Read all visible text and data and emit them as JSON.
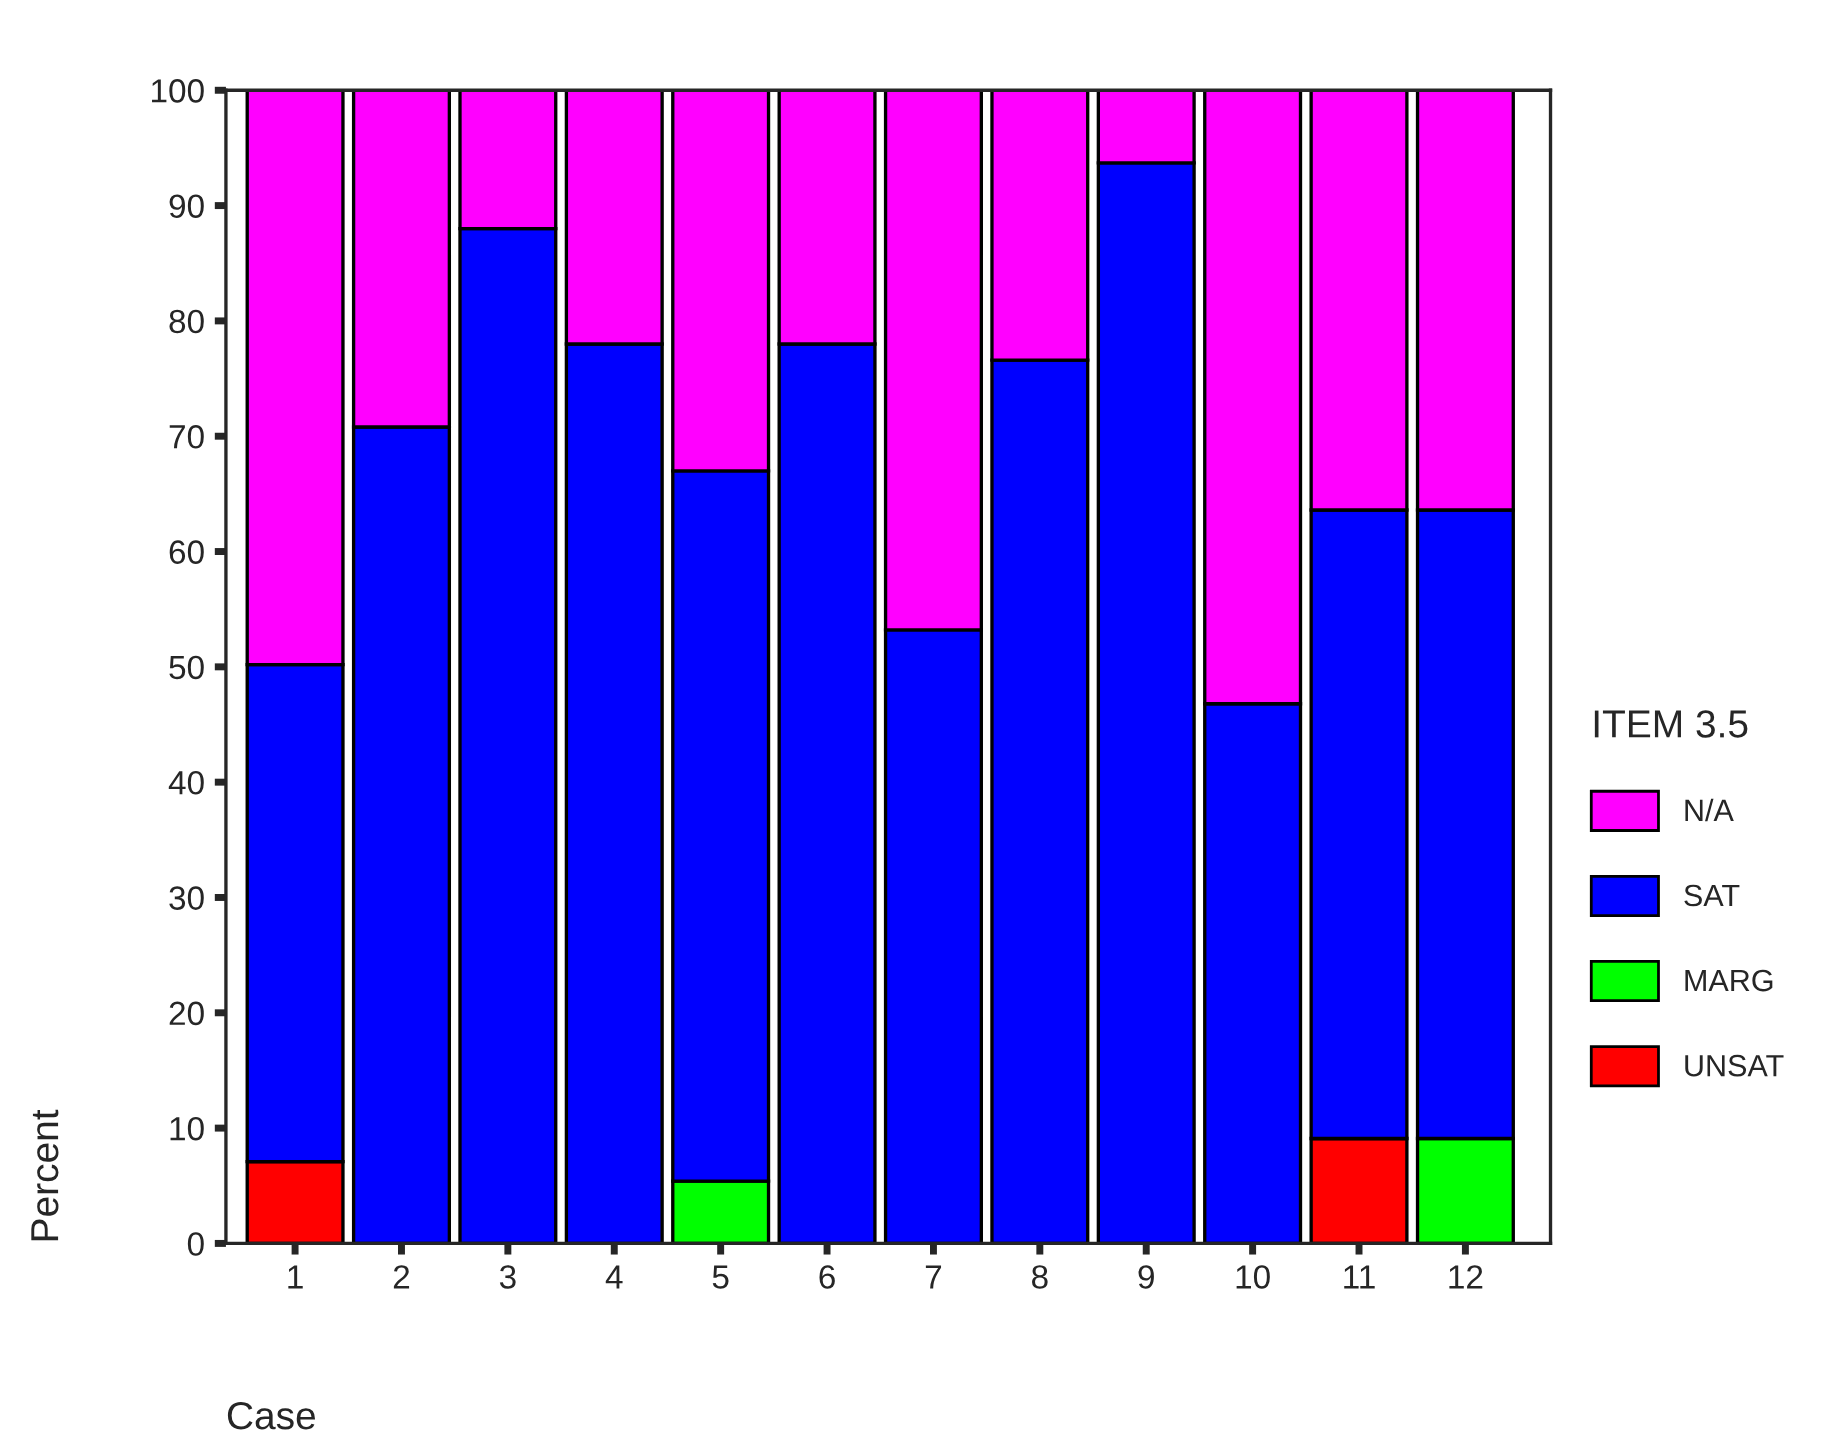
{
  "chart_data": {
    "type": "bar",
    "stacked": true,
    "xlabel": "Case",
    "ylabel": "Percent",
    "legend_title": "ITEM 3.5",
    "legend": "right",
    "categories": [
      "1",
      "2",
      "3",
      "4",
      "5",
      "6",
      "7",
      "8",
      "9",
      "10",
      "11",
      "12"
    ],
    "series": [
      {
        "name": "UNSAT",
        "color": "#ff0000",
        "values": [
          7.1,
          0,
          0,
          0,
          0,
          0,
          0,
          0,
          0,
          0,
          9.1,
          0
        ]
      },
      {
        "name": "MARG",
        "color": "#00ff00",
        "values": [
          0,
          0,
          0,
          0,
          5.4,
          0,
          0,
          0,
          0,
          0,
          0,
          9.1
        ]
      },
      {
        "name": "SAT",
        "color": "#0000ff",
        "values": [
          43.1,
          70.8,
          88,
          78,
          61.6,
          78,
          53.2,
          76.6,
          93.7,
          46.8,
          54.5,
          54.5
        ]
      },
      {
        "name": "N/A",
        "color": "#ff00ff",
        "values": [
          49.8,
          29.2,
          12,
          22,
          33,
          22,
          46.8,
          23.4,
          6.3,
          53.2,
          36.4,
          36.4
        ]
      }
    ],
    "ylim": [
      0,
      100
    ],
    "yticks": [
      0,
      10,
      20,
      30,
      40,
      50,
      60,
      70,
      80,
      90,
      100
    ],
    "grid": false
  }
}
